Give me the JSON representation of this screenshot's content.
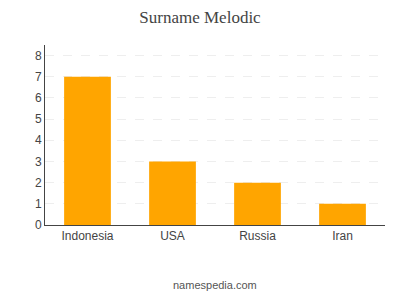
{
  "chart_data": {
    "type": "bar",
    "title": "Surname Melodic",
    "categories": [
      "Indonesia",
      "USA",
      "Russia",
      "Iran"
    ],
    "values": [
      7,
      3,
      2,
      1
    ],
    "color": "#FFA500",
    "ylim": [
      0,
      8.5
    ],
    "yticks": [
      0,
      1,
      2,
      3,
      4,
      5,
      6,
      7,
      8
    ],
    "grid": true,
    "annotations": [
      "namespedia.com"
    ]
  }
}
